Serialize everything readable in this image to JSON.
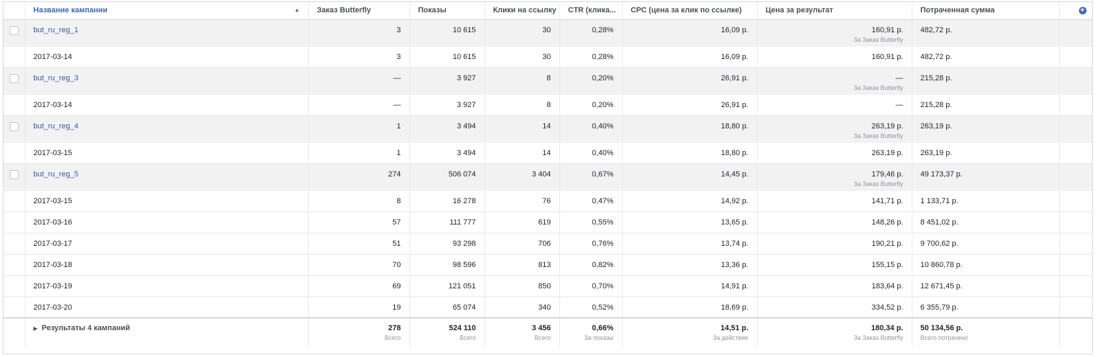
{
  "header": {
    "name": "Название кампании",
    "orders": "Заказ Butterfly",
    "impressions": "Показы",
    "clicks": "Клики на ссылку",
    "ctr": "CTR (клика...",
    "cpc": "CPC (цена за клик по ссылке)",
    "result_price": "Цена за результат",
    "spent": "Потраченная сумма"
  },
  "rows": [
    {
      "type": "campaign",
      "name": "but_ru_reg_1",
      "orders": "3",
      "impressions": "10 615",
      "clicks": "30",
      "ctr": "0,28%",
      "cpc": "16,09 р.",
      "result_price": "160,91 р.",
      "result_sub": "За Заказ Butterfly",
      "spent": "482,72 р."
    },
    {
      "type": "day",
      "name": "2017-03-14",
      "orders": "3",
      "impressions": "10 615",
      "clicks": "30",
      "ctr": "0,28%",
      "cpc": "16,09 р.",
      "result_price": "160,91 р.",
      "spent": "482,72 р."
    },
    {
      "type": "campaign",
      "name": "but_ru_reg_3",
      "orders": "—",
      "impressions": "3 927",
      "clicks": "8",
      "ctr": "0,20%",
      "cpc": "26,91 р.",
      "result_price": "—",
      "result_sub": "За Заказ Butterfly",
      "spent": "215,28 р."
    },
    {
      "type": "day",
      "name": "2017-03-14",
      "orders": "—",
      "impressions": "3 927",
      "clicks": "8",
      "ctr": "0,20%",
      "cpc": "26,91 р.",
      "result_price": "—",
      "spent": "215,28 р."
    },
    {
      "type": "campaign",
      "name": "but_ru_reg_4",
      "orders": "1",
      "impressions": "3 494",
      "clicks": "14",
      "ctr": "0,40%",
      "cpc": "18,80 р.",
      "result_price": "263,19 р.",
      "result_sub": "За Заказ Butterfly",
      "spent": "263,19 р."
    },
    {
      "type": "day",
      "name": "2017-03-15",
      "orders": "1",
      "impressions": "3 494",
      "clicks": "14",
      "ctr": "0,40%",
      "cpc": "18,80 р.",
      "result_price": "263,19 р.",
      "spent": "263,19 р."
    },
    {
      "type": "campaign",
      "name": "but_ru_reg_5",
      "orders": "274",
      "impressions": "506 074",
      "clicks": "3 404",
      "ctr": "0,67%",
      "cpc": "14,45 р.",
      "result_price": "179,46 р.",
      "result_sub": "За Заказ Butterfly",
      "spent": "49 173,37 р."
    },
    {
      "type": "day",
      "name": "2017-03-15",
      "orders": "8",
      "impressions": "16 278",
      "clicks": "76",
      "ctr": "0,47%",
      "cpc": "14,92 р.",
      "result_price": "141,71 р.",
      "spent": "1 133,71 р."
    },
    {
      "type": "day",
      "name": "2017-03-16",
      "orders": "57",
      "impressions": "111 777",
      "clicks": "619",
      "ctr": "0,55%",
      "cpc": "13,65 р.",
      "result_price": "148,26 р.",
      "spent": "8 451,02 р."
    },
    {
      "type": "day",
      "name": "2017-03-17",
      "orders": "51",
      "impressions": "93 298",
      "clicks": "706",
      "ctr": "0,76%",
      "cpc": "13,74 р.",
      "result_price": "190,21 р.",
      "spent": "9 700,62 р."
    },
    {
      "type": "day",
      "name": "2017-03-18",
      "orders": "70",
      "impressions": "98 596",
      "clicks": "813",
      "ctr": "0,82%",
      "cpc": "13,36 р.",
      "result_price": "155,15 р.",
      "spent": "10 860,78 р."
    },
    {
      "type": "day",
      "name": "2017-03-19",
      "orders": "69",
      "impressions": "121 051",
      "clicks": "850",
      "ctr": "0,70%",
      "cpc": "14,91 р.",
      "result_price": "183,64 р.",
      "spent": "12 671,45 р."
    },
    {
      "type": "day",
      "name": "2017-03-20",
      "orders": "19",
      "impressions": "65 074",
      "clicks": "340",
      "ctr": "0,52%",
      "cpc": "18,69 р.",
      "result_price": "334,52 р.",
      "spent": "6 355,79 р."
    }
  ],
  "totals": {
    "name": "Результаты 4 кампаний",
    "orders": "278",
    "orders_sub": "Всего",
    "impressions": "524 110",
    "impressions_sub": "Всего",
    "clicks": "3 456",
    "clicks_sub": "Всего",
    "ctr": "0,66%",
    "ctr_sub": "За показы",
    "cpc": "14,51 р.",
    "cpc_sub": "За действие",
    "result_price": "180,34 р.",
    "result_sub": "За Заказ Butterfly",
    "spent": "50 134,56 р.",
    "spent_sub": "Всего потрачено"
  },
  "icons": {
    "add_column": "plus-circle-icon",
    "sort": "sort-up-icon",
    "expand": "caret-right-icon"
  },
  "colors": {
    "accent": "#4267b2",
    "link": "#365899",
    "campaign_row_bg": "#f2f2f2"
  }
}
